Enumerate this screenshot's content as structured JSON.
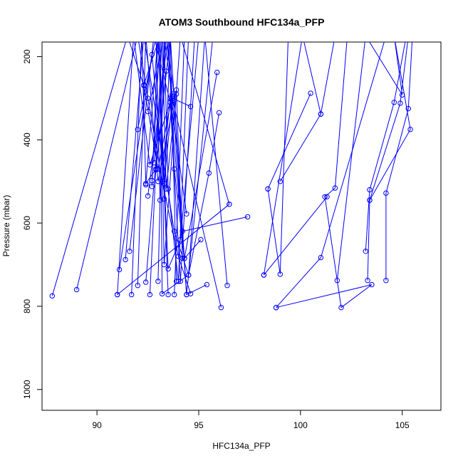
{
  "chart_data": {
    "type": "line",
    "title": "ATOM3 Southbound HFC134a_PFP",
    "xlabel": "HFC134a_PFP",
    "ylabel": "Pressure (mbar)",
    "xlim": [
      87.3,
      106.9
    ],
    "ylim": [
      1050,
      165
    ],
    "y_axis_inverted": true,
    "x_ticks": [
      90,
      95,
      100,
      105
    ],
    "y_ticks": [
      200,
      400,
      600,
      800,
      1000
    ],
    "grid": false,
    "legend": "none",
    "color": "#0000ff",
    "series": [
      {
        "x": [
          87.8,
          91.5,
          92.3,
          93.0,
          93.7
        ],
        "y": [
          775,
          150,
          270,
          470,
          290
        ]
      },
      {
        "x": [
          89.0,
          92.0,
          92.5,
          93.2,
          94.0,
          94.6
        ],
        "y": [
          760,
          150,
          300,
          500,
          680,
          770
        ]
      },
      {
        "x": [
          91.0,
          91.8,
          92.6,
          93.6,
          94.3,
          95.1
        ],
        "y": [
          772,
          150,
          460,
          310,
          685,
          640
        ]
      },
      {
        "x": [
          91.1,
          92.7,
          93.3,
          93.7,
          94.6
        ],
        "y": [
          712,
          195,
          505,
          300,
          320
        ]
      },
      {
        "x": [
          91.4,
          92.3,
          93.8,
          94.5,
          95.5,
          96.0
        ],
        "y": [
          688,
          150,
          620,
          725,
          480,
          335
        ]
      },
      {
        "x": [
          91.6,
          92.8,
          93.6,
          94.1,
          94.8
        ],
        "y": [
          668,
          150,
          310,
          740,
          150
        ]
      },
      {
        "x": [
          91.7,
          92.2,
          92.4,
          92.9,
          93.4
        ],
        "y": [
          772,
          150,
          505,
          470,
          235
        ]
      },
      {
        "x": [
          92.0,
          92.9,
          93.1,
          93.6,
          94.4
        ],
        "y": [
          375,
          150,
          545,
          300,
          578
        ]
      },
      {
        "x": [
          92.0,
          92.4,
          93.0,
          93.9,
          94.2
        ],
        "y": [
          750,
          150,
          500,
          280,
          685
        ]
      },
      {
        "x": [
          92.3,
          93.1,
          93.2,
          94.5,
          95.3,
          96.4
        ],
        "y": [
          268,
          150,
          770,
          725,
          150,
          750
        ]
      },
      {
        "x": [
          92.4,
          93.4,
          93.7,
          94.4,
          95.4
        ],
        "y": [
          742,
          150,
          295,
          772,
          748
        ]
      },
      {
        "x": [
          92.4,
          93.0,
          93.5,
          94.1,
          95.0
        ],
        "y": [
          508,
          150,
          710,
          640,
          150
        ]
      },
      {
        "x": [
          92.5,
          93.5,
          93.8,
          94.3,
          95.9
        ],
        "y": [
          535,
          150,
          470,
          685,
          238
        ]
      },
      {
        "x": [
          92.5,
          93.3,
          93.5,
          94.0,
          94.5
        ],
        "y": [
          332,
          150,
          518,
          740,
          150
        ]
      },
      {
        "x": [
          92.6,
          93.2,
          93.4,
          93.9
        ],
        "y": [
          772,
          150,
          518,
          290
        ]
      },
      {
        "x": [
          92.7,
          93.0,
          93.5
        ],
        "y": [
          512,
          150,
          772
        ]
      },
      {
        "x": [
          92.7,
          93.1,
          93.3,
          94.1,
          96.5
        ],
        "y": [
          498,
          150,
          700,
          150,
          555
        ]
      },
      {
        "x": [
          92.8,
          93.4,
          93.8,
          94.4,
          95.7
        ],
        "y": [
          455,
          150,
          295,
          772,
          150
        ]
      },
      {
        "x": [
          92.9,
          93.6,
          94.2,
          97.4
        ],
        "y": [
          472,
          150,
          620,
          585
        ]
      },
      {
        "x": [
          93.0,
          93.3,
          93.7,
          96.1
        ],
        "y": [
          740,
          150,
          300,
          803
        ]
      },
      {
        "x": [
          93.3,
          93.6,
          93.9
        ],
        "y": [
          542,
          150,
          740
        ]
      },
      {
        "x": [
          93.8,
          94.3,
          94.6
        ],
        "y": [
          772,
          150,
          150
        ]
      },
      {
        "x": [
          91.0,
          96.5
        ],
        "y": [
          772,
          555
        ]
      },
      {
        "x": [
          98.2,
          100.1,
          101.0
        ],
        "y": [
          725,
          150,
          338
        ]
      },
      {
        "x": [
          98.4,
          99.0,
          99.4
        ],
        "y": [
          518,
          723,
          150
        ]
      },
      {
        "x": [
          98.4,
          100.5
        ],
        "y": [
          518,
          288
        ]
      },
      {
        "x": [
          99.0,
          101.0,
          101.7
        ],
        "y": [
          500,
          338,
          150
        ]
      },
      {
        "x": [
          98.8,
          101.0,
          104.2
        ],
        "y": [
          803,
          683,
          150
        ]
      },
      {
        "x": [
          98.8,
          103.5,
          102.0,
          101.2,
          101.7,
          102.3
        ],
        "y": [
          803,
          748,
          803,
          537,
          516,
          150
        ]
      },
      {
        "x": [
          98.2,
          101.3
        ],
        "y": [
          725,
          537
        ]
      },
      {
        "x": [
          101.8,
          103.2,
          105.0,
          104.6
        ],
        "y": [
          738,
          150,
          292,
          150
        ]
      },
      {
        "x": [
          103.2,
          103.4,
          104.6,
          105.2
        ],
        "y": [
          668,
          520,
          310,
          150
        ]
      },
      {
        "x": [
          103.3,
          103.4,
          104.9,
          105.3
        ],
        "y": [
          738,
          545,
          312,
          150
        ]
      },
      {
        "x": [
          104.2,
          104.2,
          105.3,
          105.5
        ],
        "y": [
          738,
          528,
          325,
          150
        ]
      },
      {
        "x": [
          103.4,
          105.4,
          104.6
        ],
        "y": [
          545,
          375,
          150
        ]
      }
    ]
  }
}
